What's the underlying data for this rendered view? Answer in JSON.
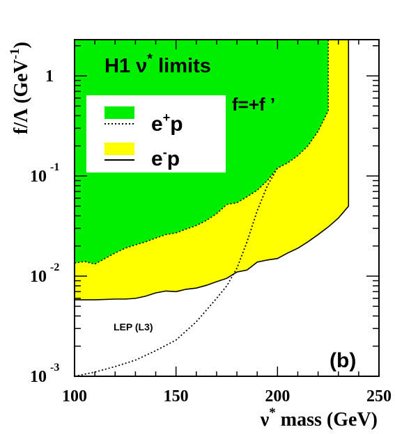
{
  "chart_data": {
    "type": "area",
    "title": "H1 ν* limits",
    "title_parts": {
      "main": "H1 ν",
      "sup": "*",
      "rest": " limits"
    },
    "panel_label": "(b)",
    "condition_label": "f=+f ’",
    "xlabel": "ν* mass (GeV)",
    "xlabel_parts": {
      "main": "ν",
      "sup": "*",
      "rest": " mass (GeV)"
    },
    "ylabel": "f/Λ (GeV-1)",
    "ylabel_parts": {
      "main": "f/Λ (GeV",
      "sup": "-1",
      "rest": ")"
    },
    "xlim": [
      100,
      250
    ],
    "ylim": [
      0.001,
      2.3
    ],
    "yscale": "log",
    "x_ticks": [
      {
        "value": 100,
        "label": "100"
      },
      {
        "value": 150,
        "label": "150"
      },
      {
        "value": 200,
        "label": "200"
      },
      {
        "value": 250,
        "label": "250"
      }
    ],
    "y_ticks": [
      {
        "value": 0.001,
        "base": "10",
        "exp": "-3"
      },
      {
        "value": 0.01,
        "base": "10",
        "exp": "-2"
      },
      {
        "value": 0.1,
        "base": "10",
        "exp": "-1"
      },
      {
        "value": 1,
        "base": "1",
        "exp": ""
      }
    ],
    "legend_placement": "upper-left",
    "legend": [
      {
        "label_main": "e",
        "label_sup": "+",
        "label_rest": "p",
        "fill_color": "#00ee00",
        "line_style": "dotted"
      },
      {
        "label_main": "e",
        "label_sup": "-",
        "label_rest": "p",
        "fill_color": "#ffff00",
        "line_style": "solid"
      }
    ],
    "series": [
      {
        "name": "e+p",
        "style": "dotted",
        "fill_color": "#00ee00",
        "x": [
          100,
          105,
          110,
          115,
          120,
          125,
          130,
          135,
          140,
          145,
          150,
          155,
          160,
          165,
          170,
          175,
          180,
          185,
          190,
          195,
          200,
          205,
          210,
          215,
          220,
          225,
          225
        ],
        "y": [
          0.0135,
          0.014,
          0.0132,
          0.015,
          0.017,
          0.019,
          0.0205,
          0.022,
          0.024,
          0.026,
          0.027,
          0.0295,
          0.032,
          0.036,
          0.042,
          0.052,
          0.054,
          0.062,
          0.072,
          0.09,
          0.12,
          0.135,
          0.16,
          0.2,
          0.28,
          0.45,
          2.3
        ]
      },
      {
        "name": "e-p",
        "style": "solid",
        "fill_color": "#ffff00",
        "x": [
          100,
          110,
          120,
          125,
          130,
          135,
          140,
          145,
          150,
          155,
          160,
          165,
          170,
          175,
          180,
          185,
          190,
          195,
          200,
          205,
          210,
          215,
          220,
          225,
          230,
          235,
          235
        ],
        "y": [
          0.0058,
          0.0058,
          0.0059,
          0.0059,
          0.006,
          0.0063,
          0.0068,
          0.0071,
          0.007,
          0.0074,
          0.0076,
          0.0081,
          0.0088,
          0.0095,
          0.011,
          0.0115,
          0.0138,
          0.0145,
          0.015,
          0.017,
          0.019,
          0.022,
          0.026,
          0.031,
          0.038,
          0.05,
          2.3
        ]
      },
      {
        "name": "LEP (L3)",
        "style": "dotted",
        "x": [
          100,
          110,
          120,
          130,
          140,
          150,
          160,
          170,
          175,
          180,
          185,
          190,
          195,
          200
        ],
        "y": [
          0.001,
          0.0011,
          0.00125,
          0.00145,
          0.0018,
          0.0023,
          0.0035,
          0.006,
          0.008,
          0.012,
          0.022,
          0.045,
          0.08,
          0.12
        ]
      }
    ],
    "annotations": [
      {
        "text": "LEP (L3)",
        "x": 140,
        "y": 0.0016
      }
    ]
  }
}
